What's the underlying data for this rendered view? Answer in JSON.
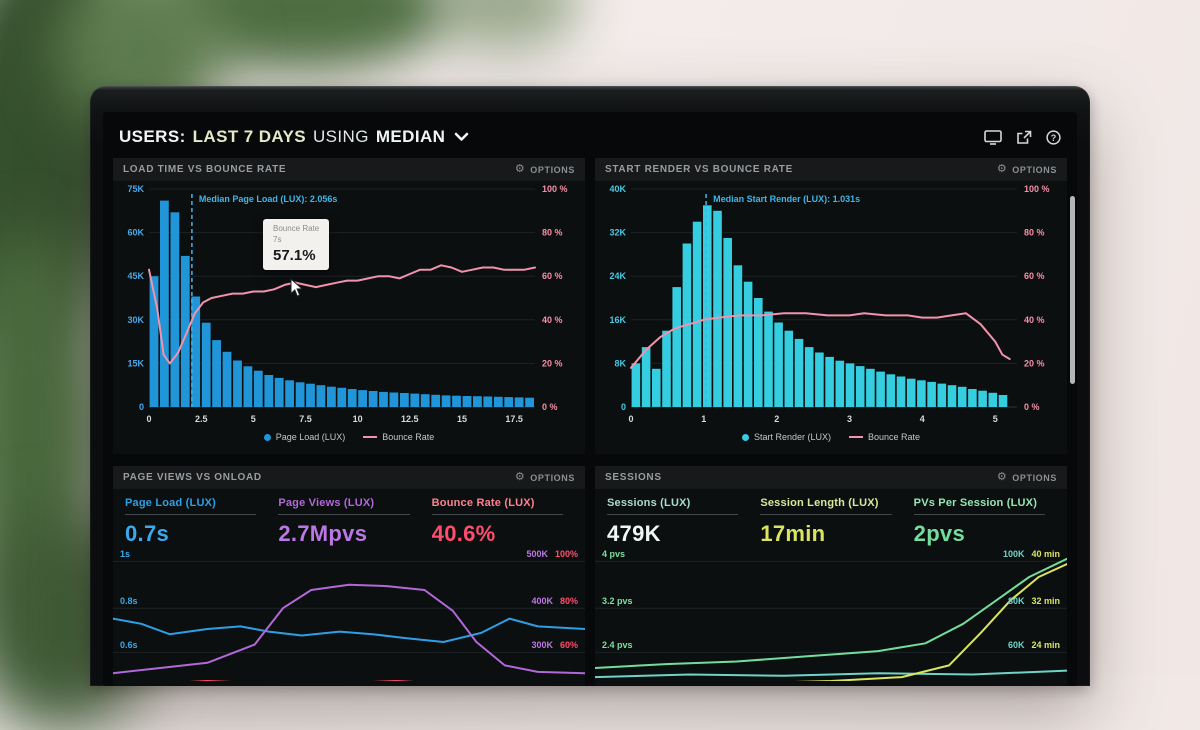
{
  "header": {
    "title_users": "USERS:",
    "title_range": "LAST 7 DAYS",
    "title_using": "USING",
    "title_agg": "MEDIAN"
  },
  "glyphs": {
    "gear": "⚙"
  },
  "panels": [
    {
      "title": "LOAD TIME VS BOUNCE RATE",
      "options_label": "OPTIONS"
    },
    {
      "title": "START RENDER VS BOUNCE RATE",
      "options_label": "OPTIONS"
    },
    {
      "title": "PAGE VIEWS VS ONLOAD",
      "options_label": "OPTIONS"
    },
    {
      "title": "SESSIONS",
      "options_label": "OPTIONS"
    }
  ],
  "chart_data": [
    {
      "id": "load-time-vs-bounce-rate",
      "type": "bar",
      "title": "LOAD TIME VS BOUNCE RATE",
      "x_ticks": [
        "0",
        "2.5",
        "5",
        "7.5",
        "10",
        "12.5",
        "15",
        "17.5"
      ],
      "x_range": [
        0,
        18.5
      ],
      "x_unit": "seconds",
      "left_axis": {
        "ticks": [
          "75K",
          "60K",
          "45K",
          "30K",
          "15K",
          "0"
        ],
        "max": 75,
        "color": "#4aa8e8"
      },
      "right_axis": {
        "ticks": [
          "100 %",
          "80 %",
          "60 %",
          "40 %",
          "20 %",
          "0 %"
        ],
        "max": 100,
        "color": "#f78fa8"
      },
      "bars": {
        "name": "Page Load (LUX)",
        "color": "#2095d8",
        "x_step": 0.5,
        "values_k": [
          45,
          71,
          67,
          52,
          38,
          29,
          23,
          19,
          16,
          14,
          12.5,
          11,
          10,
          9.2,
          8.5,
          8,
          7.5,
          7,
          6.6,
          6.2,
          5.8,
          5.5,
          5.2,
          5,
          4.8,
          4.6,
          4.4,
          4.2,
          4,
          3.9,
          3.8,
          3.7,
          3.6,
          3.5,
          3.4,
          3.3,
          3.2
        ]
      },
      "line": {
        "name": "Bounce Rate",
        "color": "#f193ac",
        "points": [
          [
            0,
            63
          ],
          [
            0.4,
            45
          ],
          [
            0.7,
            24
          ],
          [
            1.0,
            20
          ],
          [
            1.4,
            25
          ],
          [
            1.8,
            34
          ],
          [
            2.2,
            43
          ],
          [
            2.6,
            48
          ],
          [
            3.0,
            50
          ],
          [
            3.5,
            51
          ],
          [
            4.0,
            52
          ],
          [
            4.5,
            52
          ],
          [
            5.0,
            53
          ],
          [
            5.5,
            53
          ],
          [
            6.0,
            54
          ],
          [
            6.5,
            56
          ],
          [
            7.0,
            57.1
          ],
          [
            7.5,
            56
          ],
          [
            8.0,
            55
          ],
          [
            8.5,
            56
          ],
          [
            9.0,
            57
          ],
          [
            9.5,
            58
          ],
          [
            10.0,
            58
          ],
          [
            10.5,
            59
          ],
          [
            11.0,
            60
          ],
          [
            11.5,
            60
          ],
          [
            12.0,
            59
          ],
          [
            12.5,
            61
          ],
          [
            13.0,
            63
          ],
          [
            13.5,
            63
          ],
          [
            14.0,
            65
          ],
          [
            14.5,
            64
          ],
          [
            15.0,
            62
          ],
          [
            15.5,
            63
          ],
          [
            16.0,
            64
          ],
          [
            16.5,
            64
          ],
          [
            17.0,
            63
          ],
          [
            17.5,
            63
          ],
          [
            18.0,
            63
          ],
          [
            18.5,
            64
          ]
        ]
      },
      "median": {
        "x": 2.056,
        "label": "Median Page Load (LUX): 2.056s",
        "color": "#3fb6e8"
      },
      "tooltip": {
        "title": "Bounce Rate",
        "x": "7s",
        "value": "57.1%"
      },
      "legend": [
        {
          "label": "Page Load (LUX)",
          "swatch": "dot",
          "color": "#2095d8"
        },
        {
          "label": "Bounce Rate",
          "swatch": "line",
          "color": "#f193ac"
        }
      ]
    },
    {
      "id": "start-render-vs-bounce-rate",
      "type": "bar",
      "title": "START RENDER VS BOUNCE RATE",
      "x_ticks": [
        "0",
        "1",
        "2",
        "3",
        "4",
        "5"
      ],
      "x_range": [
        0,
        5.3
      ],
      "x_unit": "seconds",
      "left_axis": {
        "ticks": [
          "40K",
          "32K",
          "24K",
          "16K",
          "8K",
          "0"
        ],
        "max": 40,
        "color": "#49c9e6"
      },
      "right_axis": {
        "ticks": [
          "100 %",
          "80 %",
          "60 %",
          "40 %",
          "20 %",
          "0 %"
        ],
        "max": 100,
        "color": "#f78fa8"
      },
      "bars": {
        "name": "Start Render (LUX)",
        "color": "#35cde0",
        "x_step": 0.14,
        "values_k": [
          8,
          11,
          7,
          14,
          22,
          30,
          34,
          37,
          36,
          31,
          26,
          23,
          20,
          17.5,
          15.5,
          14,
          12.5,
          11,
          10,
          9.2,
          8.5,
          8,
          7.5,
          7,
          6.5,
          6,
          5.6,
          5.2,
          4.9,
          4.6,
          4.3,
          4,
          3.7,
          3.3,
          3,
          2.6,
          2.2
        ]
      },
      "line": {
        "name": "Bounce Rate",
        "color": "#f193ac",
        "points": [
          [
            0,
            18
          ],
          [
            0.2,
            26
          ],
          [
            0.4,
            32
          ],
          [
            0.6,
            36
          ],
          [
            0.8,
            38
          ],
          [
            1.0,
            40
          ],
          [
            1.2,
            41
          ],
          [
            1.5,
            42
          ],
          [
            1.8,
            42
          ],
          [
            2.1,
            43
          ],
          [
            2.4,
            43
          ],
          [
            2.7,
            42
          ],
          [
            3.0,
            42
          ],
          [
            3.2,
            43
          ],
          [
            3.5,
            42
          ],
          [
            3.8,
            42
          ],
          [
            4.0,
            41
          ],
          [
            4.2,
            41
          ],
          [
            4.4,
            42
          ],
          [
            4.6,
            43
          ],
          [
            4.8,
            38
          ],
          [
            5.0,
            30
          ],
          [
            5.1,
            24
          ],
          [
            5.2,
            22
          ]
        ]
      },
      "median": {
        "x": 1.031,
        "label": "Median Start Render (LUX): 1.031s",
        "color": "#3fb6e8"
      },
      "legend": [
        {
          "label": "Start Render (LUX)",
          "swatch": "dot",
          "color": "#35cde0"
        },
        {
          "label": "Bounce Rate",
          "swatch": "line",
          "color": "#f193ac"
        }
      ]
    },
    {
      "id": "page-views-vs-onload",
      "type": "line",
      "title": "PAGE VIEWS VS ONLOAD",
      "metrics": [
        {
          "label": "Page Load (LUX)",
          "value": "0.7s",
          "label_color": "#2e9fe6",
          "value_color": "#3aa9ee"
        },
        {
          "label": "Page Views (LUX)",
          "value": "2.7Mpvs",
          "label_color": "#b168d8",
          "value_color": "#bb77e4"
        },
        {
          "label": "Bounce Rate (LUX)",
          "value": "40.6%",
          "label_color": "#ff8090",
          "value_color": "#ff4d6e"
        }
      ],
      "left_ticks": [
        "1s",
        "0.8s",
        "0.6s"
      ],
      "left_color": "#3aa9ee",
      "right_ticks": [
        [
          "500K",
          "100%"
        ],
        [
          "400K",
          "80%"
        ],
        [
          "300K",
          "60%"
        ]
      ],
      "right_colors": {
        "a": "#bb77e4",
        "b": "#ff4d6e"
      },
      "series": [
        {
          "name": "Page Load (LUX)",
          "color": "#2e9fe6",
          "points": [
            [
              0,
              0.52
            ],
            [
              0.06,
              0.56
            ],
            [
              0.12,
              0.64
            ],
            [
              0.2,
              0.6
            ],
            [
              0.27,
              0.58
            ],
            [
              0.33,
              0.62
            ],
            [
              0.4,
              0.65
            ],
            [
              0.48,
              0.62
            ],
            [
              0.55,
              0.64
            ],
            [
              0.62,
              0.67
            ],
            [
              0.7,
              0.7
            ],
            [
              0.78,
              0.63
            ],
            [
              0.84,
              0.52
            ],
            [
              0.9,
              0.58
            ],
            [
              1,
              0.6
            ]
          ]
        },
        {
          "name": "Page Views (LUX)",
          "color": "#b168d8",
          "points": [
            [
              0,
              0.94
            ],
            [
              0.1,
              0.9
            ],
            [
              0.2,
              0.86
            ],
            [
              0.3,
              0.72
            ],
            [
              0.36,
              0.44
            ],
            [
              0.42,
              0.3
            ],
            [
              0.5,
              0.26
            ],
            [
              0.58,
              0.27
            ],
            [
              0.66,
              0.3
            ],
            [
              0.72,
              0.46
            ],
            [
              0.77,
              0.7
            ],
            [
              0.83,
              0.88
            ],
            [
              0.9,
              0.93
            ],
            [
              1,
              0.94
            ]
          ]
        },
        {
          "name": "Bounce Rate (LUX)",
          "color": "#ff4d6e",
          "points": [
            [
              0,
              1.04
            ],
            [
              0.2,
              1.0
            ],
            [
              0.4,
              1.03
            ],
            [
              0.6,
              1.0
            ],
            [
              0.8,
              1.04
            ],
            [
              1,
              1.01
            ]
          ]
        }
      ]
    },
    {
      "id": "sessions",
      "type": "line",
      "title": "SESSIONS",
      "metrics": [
        {
          "label": "Sessions (LUX)",
          "value": "479K",
          "label_color": "#a8dcc9",
          "value_color": "#f0f6f3"
        },
        {
          "label": "Session Length (LUX)",
          "value": "17min",
          "label_color": "#dce79c",
          "value_color": "#d9e561"
        },
        {
          "label": "PVs Per Session (LUX)",
          "value": "2pvs",
          "label_color": "#93e6b4",
          "value_color": "#74dd9d"
        }
      ],
      "left_ticks": [
        "4 pvs",
        "3.2 pvs",
        "2.4 pvs"
      ],
      "left_color": "#7ddfa0",
      "right_ticks": [
        [
          "100K",
          "40 min"
        ],
        [
          "80K",
          "32 min"
        ],
        [
          "60K",
          "24 min"
        ]
      ],
      "right_colors": {
        "a": "#6fd4c8",
        "b": "#d9e561"
      },
      "series": [
        {
          "name": "Sessions (LUX)",
          "color": "#6fd4c8",
          "points": [
            [
              0,
              0.97
            ],
            [
              0.2,
              0.95
            ],
            [
              0.4,
              0.96
            ],
            [
              0.6,
              0.94
            ],
            [
              0.8,
              0.95
            ],
            [
              1,
              0.92
            ]
          ]
        },
        {
          "name": "Session Length (LUX)",
          "color": "#d9e561",
          "points": [
            [
              0,
              1.05
            ],
            [
              0.3,
              1.02
            ],
            [
              0.5,
              1.0
            ],
            [
              0.65,
              0.97
            ],
            [
              0.75,
              0.88
            ],
            [
              0.82,
              0.62
            ],
            [
              0.88,
              0.38
            ],
            [
              0.94,
              0.2
            ],
            [
              1,
              0.1
            ]
          ]
        },
        {
          "name": "PVs Per Session (LUX)",
          "color": "#74dd9d",
          "points": [
            [
              0,
              0.9
            ],
            [
              0.15,
              0.87
            ],
            [
              0.3,
              0.85
            ],
            [
              0.45,
              0.81
            ],
            [
              0.6,
              0.77
            ],
            [
              0.7,
              0.71
            ],
            [
              0.78,
              0.56
            ],
            [
              0.85,
              0.38
            ],
            [
              0.92,
              0.2
            ],
            [
              1,
              0.06
            ]
          ]
        }
      ]
    }
  ]
}
